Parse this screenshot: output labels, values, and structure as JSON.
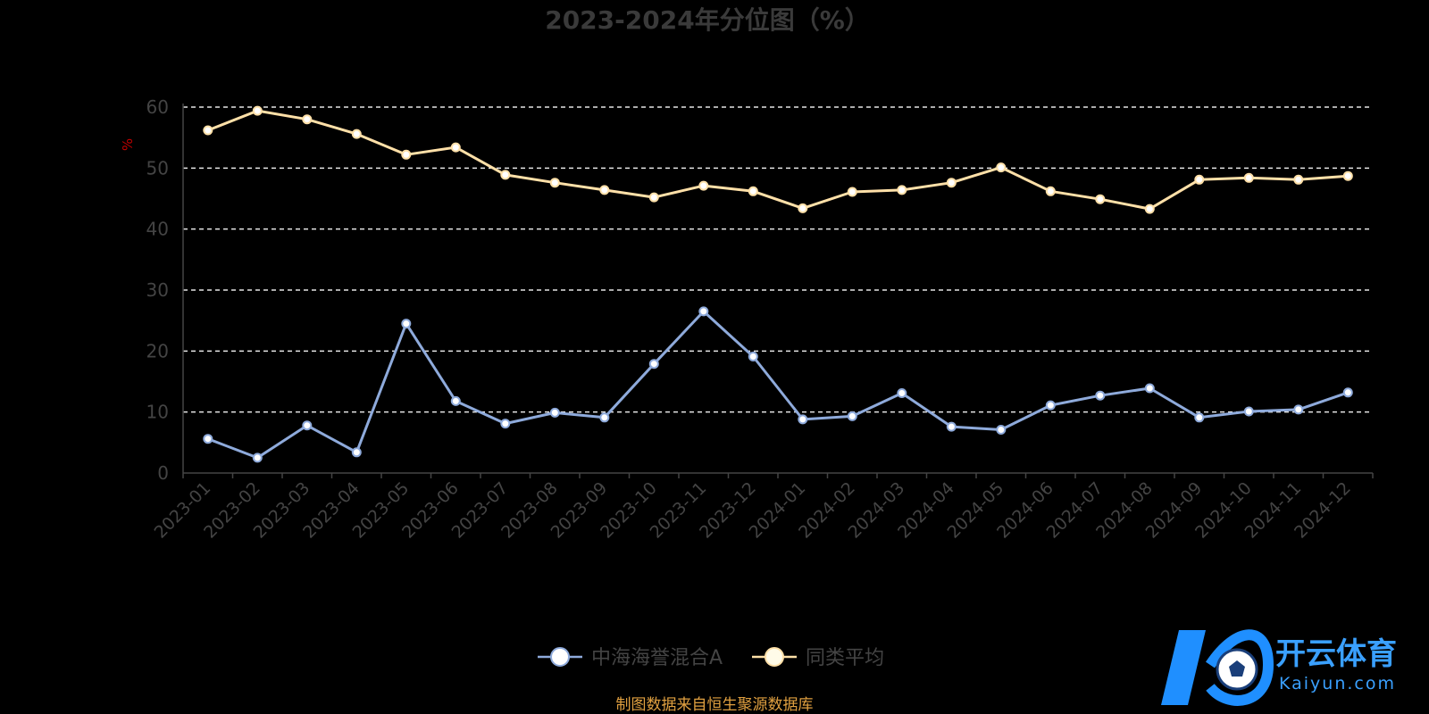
{
  "chart_data": {
    "type": "line",
    "title": "2023-2024年分位图（%）",
    "ylabel": "%",
    "ylim": [
      0,
      60
    ],
    "yticks": [
      0,
      10,
      20,
      30,
      40,
      50,
      60
    ],
    "grid": true,
    "legend_position": "bottom-center",
    "categories": [
      "2023-01",
      "2023-02",
      "2023-03",
      "2023-04",
      "2023-05",
      "2023-06",
      "2023-07",
      "2023-08",
      "2023-09",
      "2023-10",
      "2023-11",
      "2023-12",
      "2024-01",
      "2024-02",
      "2024-03",
      "2024-04",
      "2024-05",
      "2024-06",
      "2024-07",
      "2024-08",
      "2024-09",
      "2024-10",
      "2024-11",
      "2024-12"
    ],
    "series": [
      {
        "name": "中海海誉混合A",
        "color": "#8eaadb",
        "values": [
          5.6,
          2.5,
          7.8,
          3.4,
          24.5,
          11.8,
          8.1,
          9.9,
          9.1,
          17.9,
          26.5,
          19.1,
          8.8,
          9.3,
          13.1,
          7.6,
          7.1,
          11.1,
          12.7,
          13.9,
          9.1,
          10.1,
          10.4,
          13.2
        ]
      },
      {
        "name": "同类平均",
        "color": "#ffe0a8",
        "values": [
          56.2,
          59.4,
          58.0,
          55.6,
          52.2,
          53.4,
          48.9,
          47.6,
          46.4,
          45.2,
          47.1,
          46.2,
          43.4,
          46.1,
          46.4,
          47.6,
          50.1,
          46.2,
          44.9,
          43.3,
          48.1,
          48.4,
          48.1,
          48.7
        ]
      }
    ]
  },
  "source_note": "制图数据来自恒生聚源数据库",
  "logo": {
    "main_text": "开云体育",
    "sub_text": "Kaiyun.com"
  }
}
